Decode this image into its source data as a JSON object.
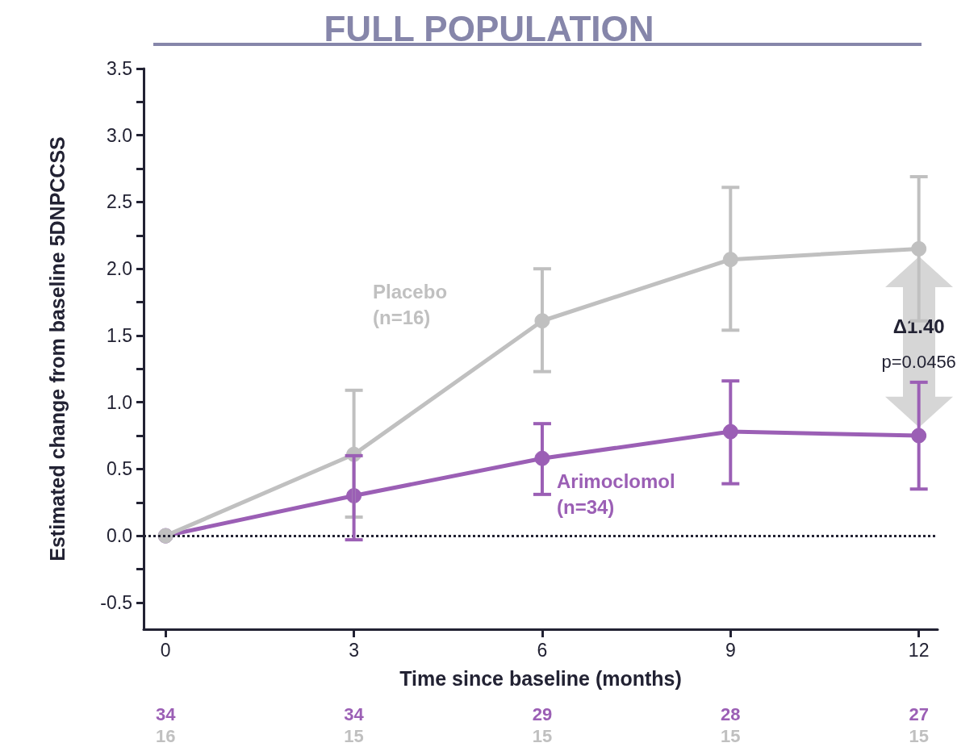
{
  "chart_data": {
    "type": "line",
    "title": "FULL POPULATION",
    "xlabel": "Time since baseline (months)",
    "ylabel": "Estimated change from baseline 5DNPCCSS",
    "x": [
      0,
      3,
      6,
      9,
      12
    ],
    "series": [
      {
        "name": "Arimoclomol (n=34)",
        "color": "#9b5fb5",
        "values": [
          0,
          0.3,
          0.58,
          0.78,
          0.75
        ],
        "errors": [
          null,
          [
            -0.03,
            0.6
          ],
          [
            0.31,
            0.84
          ],
          [
            0.39,
            1.16
          ],
          [
            0.35,
            1.15
          ]
        ]
      },
      {
        "name": "Placebo (n=16)",
        "color": "#c0c0c0",
        "values": [
          0,
          0.61,
          1.61,
          2.07,
          2.15
        ],
        "errors": [
          null,
          [
            0.14,
            1.09
          ],
          [
            1.23,
            2.0
          ],
          [
            1.54,
            2.61
          ],
          [
            1.61,
            2.69
          ]
        ]
      }
    ],
    "xlim": [
      -0.35,
      12.3
    ],
    "xticks": [
      0,
      3,
      6,
      9,
      12
    ],
    "ylim": [
      -0.7,
      3.5
    ],
    "yticks": [
      {
        "value": -0.5,
        "label": "-0.5"
      },
      {
        "value": -0.25,
        "label": null
      },
      {
        "value": 0,
        "label": "0.0"
      },
      {
        "value": 0.25,
        "label": null
      },
      {
        "value": 0.5,
        "label": "0.5"
      },
      {
        "value": 0.75,
        "label": null
      },
      {
        "value": 1,
        "label": "1.0"
      },
      {
        "value": 1.25,
        "label": null
      },
      {
        "value": 1.5,
        "label": "1.5"
      },
      {
        "value": 1.75,
        "label": null
      },
      {
        "value": 2,
        "label": "2.0"
      },
      {
        "value": 2.25,
        "label": null
      },
      {
        "value": 2.5,
        "label": "2.5"
      },
      {
        "value": 2.75,
        "label": null
      },
      {
        "value": 3,
        "label": "3.0"
      },
      {
        "value": 3.25,
        "label": null
      },
      {
        "value": 3.5,
        "label": "3.5"
      }
    ],
    "ref_lines": [
      {
        "axis": "y",
        "value": 0,
        "color": "#222233",
        "line_style": "dotted"
      }
    ],
    "annotations": [
      "Δ1.40",
      "p=0.0456",
      "34",
      "16",
      "34",
      "15",
      "29",
      "15",
      "28",
      "15",
      "27",
      "15"
    ],
    "marker": "circle",
    "line_style": "solid",
    "grid": false,
    "legend": false
  }
}
